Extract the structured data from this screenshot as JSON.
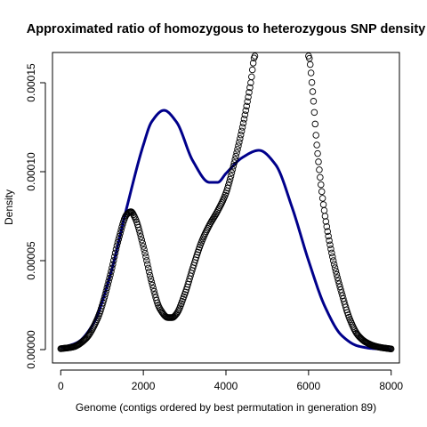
{
  "chart_data": {
    "type": "line",
    "title": "Approximated ratio of homozygous to heterozygous SNP density",
    "xlabel": "Genome (contigs ordered by best permutation in generation 89)",
    "ylabel": "Density",
    "xlim": [
      -200,
      8200
    ],
    "ylim": [
      -7.5e-06,
      0.000167
    ],
    "x_ticks": [
      0,
      2000,
      4000,
      6000,
      8000
    ],
    "x_tick_labels": [
      "0",
      "2000",
      "4000",
      "6000",
      "8000"
    ],
    "y_ticks": [
      0,
      5e-05,
      0.0001,
      0.00015
    ],
    "y_tick_labels": [
      "0.00000",
      "0.00005",
      "0.00010",
      "0.00015"
    ],
    "grid": false,
    "series": [
      {
        "style": "line",
        "color": "#00008b",
        "x": [
          0,
          400,
          800,
          1200,
          1600,
          2000,
          2200,
          2500,
          2800,
          3200,
          3600,
          3800,
          4000,
          4400,
          4800,
          5200,
          5600,
          6000,
          6400,
          6800,
          7200,
          7600,
          8000
        ],
        "y": [
          1e-06,
          4e-06,
          1.5e-05,
          4.2e-05,
          8e-05,
          0.000115,
          0.000128,
          0.0001345,
          0.000128,
          0.000106,
          9.4e-05,
          9.4e-05,
          9.9e-05,
          0.000108,
          0.000112,
          0.000104,
          8e-05,
          5e-05,
          2.4e-05,
          8e-06,
          2e-06,
          5e-07,
          1e-07
        ]
      },
      {
        "style": "points",
        "color": "#000000",
        "x": [
          0,
          300,
          600,
          900,
          1200,
          1400,
          1600,
          1700,
          1800,
          2000,
          2200,
          2400,
          2600,
          2700,
          2800,
          3000,
          3200,
          3400,
          3600,
          3800,
          4000,
          4200,
          4400,
          4600,
          4700,
          6000,
          6100,
          6200,
          6400,
          6600,
          6800,
          7000,
          7200,
          7400,
          7600,
          7800,
          8000
        ],
        "y": [
          5e-07,
          1.5e-06,
          6e-06,
          1.8e-05,
          4.2e-05,
          6.2e-05,
          7.6e-05,
          7.75e-05,
          7.4e-05,
          5.8e-05,
          3.8e-05,
          2.3e-05,
          1.8e-05,
          1.8e-05,
          2e-05,
          3.1e-05,
          4.6e-05,
          6e-05,
          7e-05,
          7.8e-05,
          8.8e-05,
          0.000105,
          0.000125,
          0.00015,
          0.000165,
          0.000165,
          0.000145,
          0.000115,
          7.5e-05,
          5e-05,
          3.2e-05,
          1.7e-05,
          8e-06,
          4e-06,
          2e-06,
          1e-06,
          4e-07
        ]
      }
    ]
  }
}
